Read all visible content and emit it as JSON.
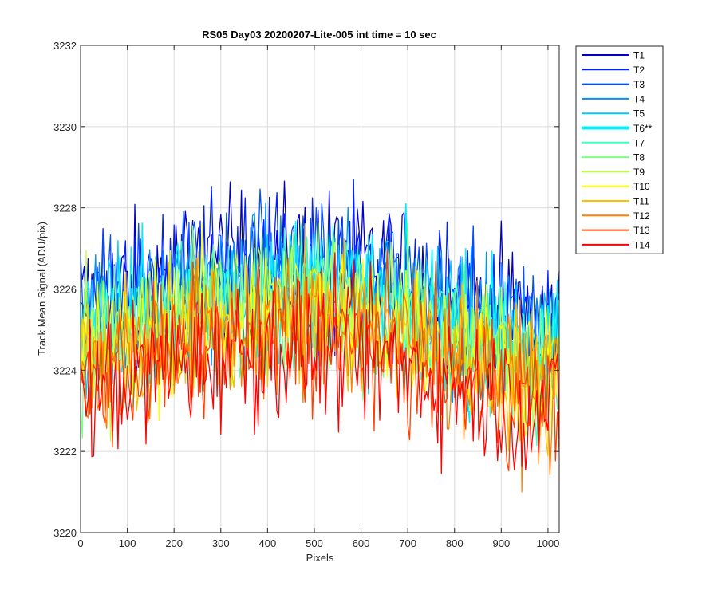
{
  "chart_data": {
    "type": "line",
    "title": "RS05 Day03 20200207-Lite-005 int time = 10 sec",
    "xlabel": "Pixels",
    "ylabel": "Track Mean Signal (ADU/pix)",
    "xlim": [
      0,
      1024
    ],
    "ylim": [
      3220,
      3232
    ],
    "xticks": [
      0,
      100,
      200,
      300,
      400,
      500,
      600,
      700,
      800,
      900,
      1000
    ],
    "yticks": [
      3220,
      3222,
      3224,
      3226,
      3228,
      3230,
      3232
    ],
    "grid": true,
    "legend_position": "outside-top-right",
    "x_step": 4,
    "series_note_noise_amplitude_adu": 1.6,
    "series": [
      {
        "name": "T1",
        "color": "#0000c8",
        "width": 1.3,
        "profile": [
          3225.6,
          3226.0,
          3226.4,
          3226.6,
          3226.7,
          3226.8,
          3226.6,
          3226.3,
          3225.9,
          3225.5,
          3225.2
        ]
      },
      {
        "name": "T2",
        "color": "#0020ff",
        "width": 1.3,
        "profile": [
          3225.4,
          3225.8,
          3226.2,
          3226.4,
          3226.5,
          3226.6,
          3226.4,
          3226.1,
          3225.7,
          3225.3,
          3225.0
        ]
      },
      {
        "name": "T3",
        "color": "#0050ff",
        "width": 1.3,
        "profile": [
          3225.2,
          3225.6,
          3226.0,
          3226.2,
          3226.3,
          3226.4,
          3226.2,
          3225.9,
          3225.5,
          3225.1,
          3224.8
        ]
      },
      {
        "name": "T4",
        "color": "#0090ff",
        "width": 1.3,
        "profile": [
          3225.0,
          3225.4,
          3225.8,
          3226.0,
          3226.1,
          3226.2,
          3226.0,
          3225.7,
          3225.3,
          3224.9,
          3224.6
        ]
      },
      {
        "name": "T5",
        "color": "#00c8ff",
        "width": 1.3,
        "profile": [
          3224.9,
          3225.3,
          3225.7,
          3225.9,
          3226.0,
          3226.1,
          3225.9,
          3225.6,
          3225.2,
          3224.8,
          3224.5
        ]
      },
      {
        "name": "T6**",
        "color": "#00f0ff",
        "width": 4,
        "profile": [
          3224.8,
          3225.2,
          3225.6,
          3225.8,
          3225.9,
          3226.0,
          3225.8,
          3225.5,
          3225.1,
          3224.7,
          3224.4
        ]
      },
      {
        "name": "T7",
        "color": "#40ffc0",
        "width": 1.3,
        "profile": [
          3224.6,
          3225.0,
          3225.4,
          3225.6,
          3225.7,
          3225.8,
          3225.6,
          3225.3,
          3224.9,
          3224.5,
          3224.2
        ]
      },
      {
        "name": "T8",
        "color": "#80ff80",
        "width": 1.3,
        "profile": [
          3224.5,
          3224.9,
          3225.3,
          3225.5,
          3225.6,
          3225.7,
          3225.5,
          3225.2,
          3224.8,
          3224.4,
          3224.1
        ]
      },
      {
        "name": "T9",
        "color": "#c0ff40",
        "width": 1.3,
        "profile": [
          3224.4,
          3224.8,
          3225.2,
          3225.4,
          3225.5,
          3225.6,
          3225.4,
          3225.1,
          3224.7,
          3224.3,
          3224.0
        ]
      },
      {
        "name": "T10",
        "color": "#ffff00",
        "width": 1.3,
        "profile": [
          3224.3,
          3224.7,
          3225.1,
          3225.3,
          3225.4,
          3225.5,
          3225.3,
          3225.0,
          3224.6,
          3224.2,
          3223.9
        ]
      },
      {
        "name": "T11",
        "color": "#ffc000",
        "width": 1.3,
        "profile": [
          3224.1,
          3224.5,
          3224.9,
          3225.1,
          3225.2,
          3225.3,
          3225.1,
          3224.8,
          3224.4,
          3224.0,
          3223.7
        ]
      },
      {
        "name": "T12",
        "color": "#ff8000",
        "width": 1.3,
        "profile": [
          3223.9,
          3224.3,
          3224.7,
          3224.9,
          3225.0,
          3225.1,
          3224.9,
          3224.6,
          3224.2,
          3223.8,
          3223.5
        ]
      },
      {
        "name": "T13",
        "color": "#ff4000",
        "width": 1.3,
        "profile": [
          3223.6,
          3224.0,
          3224.4,
          3224.6,
          3224.7,
          3224.8,
          3224.6,
          3224.3,
          3223.9,
          3223.5,
          3223.2
        ]
      },
      {
        "name": "T14",
        "color": "#ff0000",
        "width": 1.3,
        "profile": [
          3223.4,
          3223.8,
          3224.2,
          3224.4,
          3224.5,
          3224.6,
          3224.4,
          3224.1,
          3223.7,
          3223.3,
          3223.0
        ]
      }
    ]
  }
}
